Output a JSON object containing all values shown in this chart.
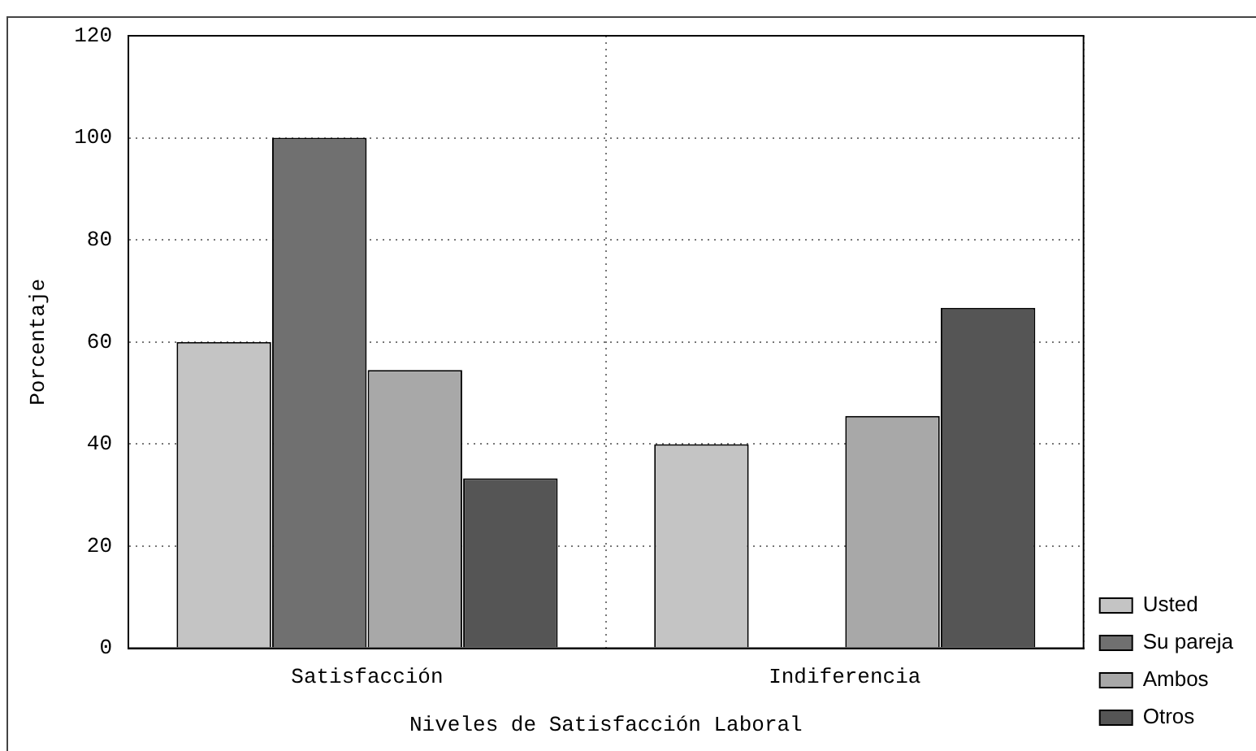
{
  "chart_data": {
    "type": "bar",
    "xlabel": "Niveles de Satisfacción Laboral",
    "ylabel": "Porcentaje",
    "categories": [
      "Satisfacción",
      "Indiferencia"
    ],
    "series": [
      {
        "name": "Usted",
        "color": "#c4c4c4",
        "values": [
          60,
          40
        ]
      },
      {
        "name": "Su pareja",
        "color": "#707070",
        "values": [
          100,
          0
        ]
      },
      {
        "name": "Ambos",
        "color": "#a8a8a8",
        "values": [
          54.5,
          45.5
        ]
      },
      {
        "name": "Otros",
        "color": "#555555",
        "values": [
          33.3,
          66.7
        ]
      }
    ],
    "ylim": [
      0,
      120
    ],
    "yticks": [
      0,
      20,
      40,
      60,
      80,
      100,
      120
    ],
    "grid": true,
    "legend": "bottom right"
  }
}
